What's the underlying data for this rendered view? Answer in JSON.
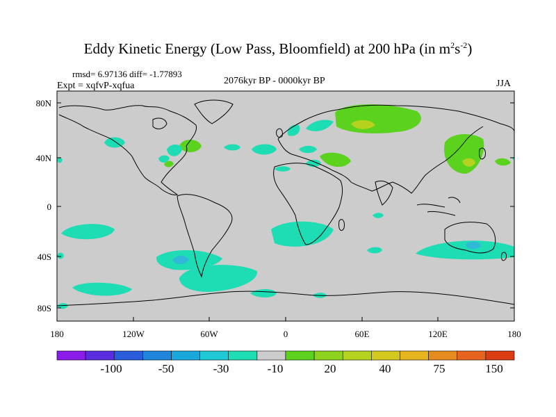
{
  "title": "Eddy Kinetic Energy (Low Pass, Bloomfield) at 200 hPa (in m",
  "title_sup1": "2",
  "title_mid": "s",
  "title_sup2": "-2",
  "title_end": ")",
  "stats": "rmsd= 6.97136 diff= -1.77893",
  "experiment": "Expt = xqfvP-xqfua",
  "period": "2076kyr BP - 0000kyr BP",
  "season": "JJA",
  "y_axis_labels": [
    "80N",
    "40N",
    "0",
    "40S",
    "80S"
  ],
  "x_axis_labels": [
    "180",
    "120W",
    "60W",
    "0",
    "60E",
    "120E",
    "180"
  ],
  "colorbar": {
    "labels": [
      "-100",
      "-50",
      "-30",
      "-10",
      "20",
      "40",
      "75",
      "150"
    ],
    "colors": [
      "#8a1be8",
      "#5a2ee0",
      "#2a5ddc",
      "#1f86dc",
      "#18a8dc",
      "#1ec8d4",
      "#1edcb4",
      "#cccccc",
      "#5ad21e",
      "#8ed21e",
      "#b4d21e",
      "#d2c81e",
      "#e6b41e",
      "#e68c1e",
      "#e6641e",
      "#dc3c14"
    ]
  },
  "colors": {
    "background": "#cccccc",
    "cyan": "#1edcb4",
    "green": "#5ad21e",
    "lightgreen": "#8ed21e",
    "blue": "#30b8d8",
    "olive": "#b4d21e"
  }
}
